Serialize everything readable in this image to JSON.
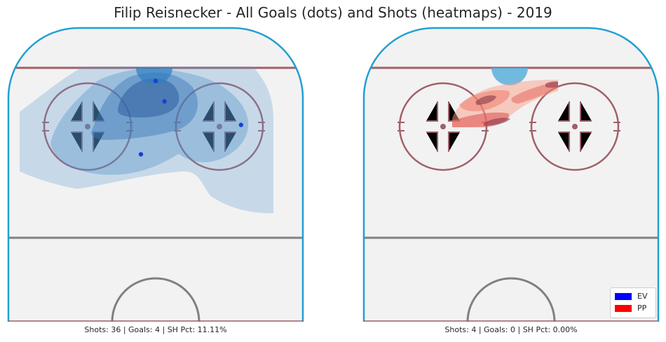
{
  "colors": {
    "ev": "#0000ff",
    "pp": "#ff0000",
    "ice": "#f2f2f2",
    "boards": "#22a0d0",
    "red_line": "#a06068",
    "blue_line": "#808080"
  },
  "chart_data": {
    "title": "Filip Reisnecker - All Goals (dots) and Shots (heatmaps) - 2019",
    "legend": {
      "placement": "bottom-right",
      "entries": [
        {
          "label": "EV",
          "color": "#0000ff"
        },
        {
          "label": "PP",
          "color": "#ff0000"
        }
      ]
    },
    "panels": [
      {
        "type": "heatmap",
        "strength": "EV",
        "stats": "Shots: 36 | Goals: 4 | SH Pct: 11.11%",
        "shots": 36,
        "goals": 4,
        "sh_pct": 11.11,
        "goal_points": [
          {
            "x": 0.5,
            "y": 0.18
          },
          {
            "x": 0.53,
            "y": 0.25
          },
          {
            "x": 0.79,
            "y": 0.33
          },
          {
            "x": 0.45,
            "y": 0.43
          }
        ]
      },
      {
        "type": "heatmap",
        "strength": "PP",
        "stats": "Shots: 4 | Goals: 0 | SH Pct: 0.00%",
        "shots": 4,
        "goals": 0,
        "sh_pct": 0.0,
        "goal_points": []
      }
    ]
  }
}
